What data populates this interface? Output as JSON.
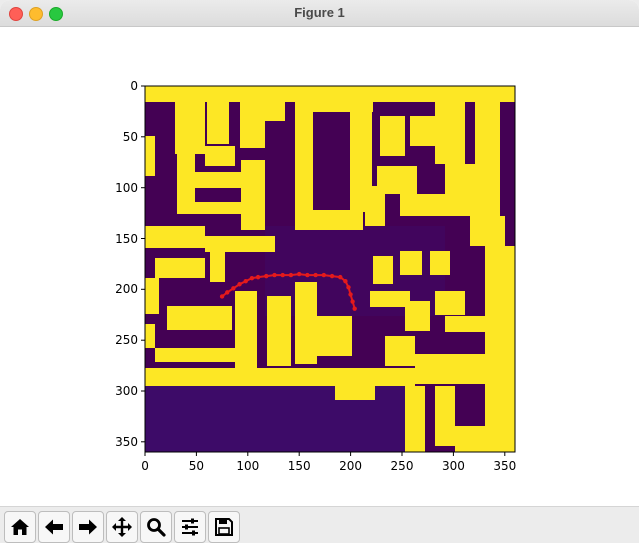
{
  "window": {
    "title": "Figure 1"
  },
  "plot": {
    "x_ticks": [
      "0",
      "50",
      "100",
      "150",
      "200",
      "250",
      "300",
      "350"
    ],
    "y_ticks": [
      "0",
      "50",
      "100",
      "150",
      "200",
      "250",
      "300",
      "350"
    ],
    "colors": {
      "obstacle": "#fde725",
      "free": "#440154",
      "free_dark": "#3b0f70",
      "trajectory": "#e41a1c"
    },
    "image_extent": {
      "x": [
        0,
        360
      ],
      "y": [
        0,
        360
      ]
    },
    "trajectory": [
      [
        75,
        207
      ],
      [
        80,
        203
      ],
      [
        86,
        199
      ],
      [
        92,
        195
      ],
      [
        98,
        192
      ],
      [
        104,
        189
      ],
      [
        110,
        188
      ],
      [
        118,
        187
      ],
      [
        126,
        186
      ],
      [
        134,
        186
      ],
      [
        142,
        186
      ],
      [
        150,
        185
      ],
      [
        158,
        186
      ],
      [
        166,
        186
      ],
      [
        174,
        186
      ],
      [
        182,
        187
      ],
      [
        190,
        188
      ],
      [
        195,
        192
      ],
      [
        198,
        198
      ],
      [
        200,
        205
      ],
      [
        202,
        212
      ],
      [
        204,
        219
      ]
    ]
  },
  "toolbar": {
    "buttons": [
      {
        "name": "home-button",
        "icon": "home-icon"
      },
      {
        "name": "back-button",
        "icon": "arrow-left-icon"
      },
      {
        "name": "forward-button",
        "icon": "arrow-right-icon"
      },
      {
        "name": "pan-button",
        "icon": "move-icon"
      },
      {
        "name": "zoom-button",
        "icon": "magnifier-icon"
      },
      {
        "name": "configure-subplots-button",
        "icon": "sliders-icon"
      },
      {
        "name": "save-button",
        "icon": "floppy-disk-icon"
      }
    ]
  }
}
